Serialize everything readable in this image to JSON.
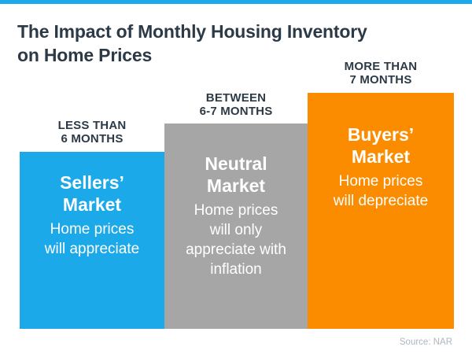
{
  "title": "The Impact of Monthly Housing Inventory\non Home Prices",
  "source_note": "Source: NAR",
  "colors": {
    "accent_blue": "#1BA9EA",
    "bar_blue": "#1BA9EA",
    "bar_gray": "#A6A6A6",
    "bar_orange": "#FB8C00",
    "heading_navy": "#2C3A47",
    "bar_text_white": "#FFFFFF",
    "source_gray": "#AEB5BD"
  },
  "bars": [
    {
      "label": "LESS THAN\n6 MONTHS",
      "market": "Sellers’\nMarket",
      "description": "Home prices\nwill appreciate",
      "color": "#1BA9EA"
    },
    {
      "label": "BETWEEN\n6-7 MONTHS",
      "market": "Neutral\nMarket",
      "description": "Home prices\nwill only\nappreciate with\ninflation",
      "color": "#A6A6A6"
    },
    {
      "label": "MORE THAN\n7 MONTHS",
      "market": "Buyers’\nMarket",
      "description": "Home prices\nwill depreciate",
      "color": "#FB8C00"
    }
  ],
  "chart_data": {
    "type": "bar",
    "title": "The Impact of Monthly Housing Inventory on Home Prices",
    "categories": [
      "LESS THAN 6 MONTHS",
      "BETWEEN 6-7 MONTHS",
      "MORE THAN 7 MONTHS"
    ],
    "values": [
      225,
      261,
      300
    ],
    "values_note": "qualitative chart; no numeric axis — values are relative bar heights in pixels",
    "bar_annotations": [
      "Sellers’ Market — Home prices will appreciate",
      "Neutral Market — Home prices will only appreciate with inflation",
      "Buyers’ Market — Home prices will depreciate"
    ],
    "bar_colors": [
      "#1BA9EA",
      "#A6A6A6",
      "#FB8C00"
    ],
    "xlabel": "",
    "ylabel": "",
    "grid": false,
    "legend": false,
    "source": "Source: NAR"
  }
}
